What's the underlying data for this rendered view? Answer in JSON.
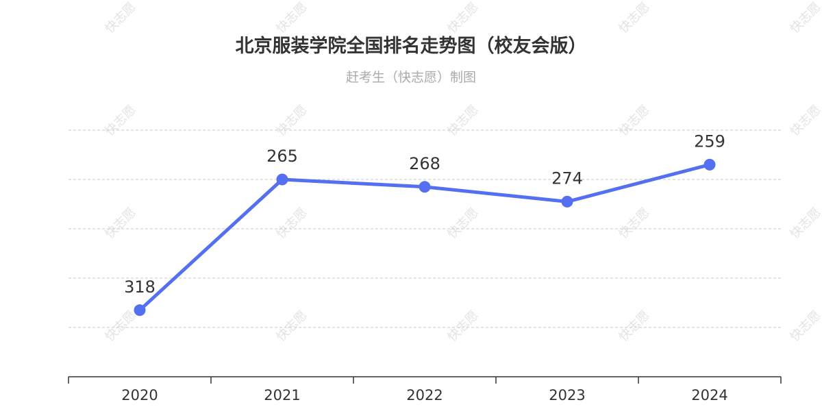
{
  "chart_data": {
    "type": "line",
    "title": "北京服装学院全国排名走势图（校友会版）",
    "subtitle": "赶考生（快志愿）制图",
    "categories": [
      "2020",
      "2021",
      "2022",
      "2023",
      "2024"
    ],
    "series": [
      {
        "values": [
          318,
          265,
          268,
          274,
          259
        ],
        "labels": [
          "318",
          "265",
          "268",
          "274",
          "259"
        ],
        "color": "#5470f0"
      }
    ],
    "y_axis": {
      "inverted": true,
      "range": [
        245,
        345
      ],
      "visible_labels": false
    },
    "grid": "horizontal dashed",
    "legend": "none"
  },
  "watermark": {
    "text": "快志愿",
    "color": "#e3e3e3"
  }
}
